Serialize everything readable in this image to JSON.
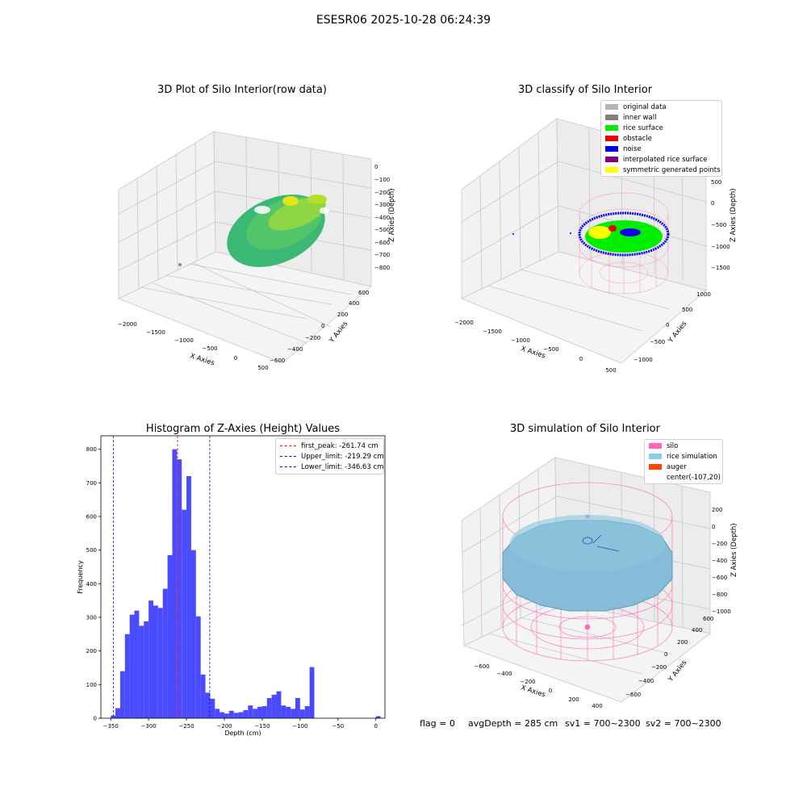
{
  "suptitle": "ESESR06 2025-10-28 06:24:39",
  "plots": {
    "raw": {
      "title": "3D Plot of Silo Interior(row data)",
      "xlabel": "X Axies",
      "ylabel": "Y Axies",
      "zlabel": "Z Axies (Depth)",
      "xticks": [
        "−2000",
        "−1500",
        "−1000",
        "−500",
        "0",
        "500"
      ],
      "yticks": [
        "−600",
        "−400",
        "−200",
        "0",
        "200",
        "400",
        "600"
      ],
      "zticks": [
        "0",
        "−100",
        "−200",
        "−300",
        "−400",
        "−500",
        "−600",
        "−700",
        "−800"
      ]
    },
    "classify": {
      "title": "3D classify of Silo Interior",
      "xlabel": "X Axies",
      "ylabel": "Y Axies",
      "zlabel": "Z Axies (Depth)",
      "xticks": [
        "−2000",
        "−1500",
        "−1000",
        "−500",
        "0",
        "500"
      ],
      "yticks": [
        "−1000",
        "−500",
        "0",
        "500",
        "1000"
      ],
      "zticks": [
        "500",
        "0",
        "−500",
        "−1000",
        "−1500"
      ],
      "legend": [
        {
          "label": "original data",
          "color": "#b3b3b3"
        },
        {
          "label": "inner wall",
          "color": "#808080"
        },
        {
          "label": "rice surface",
          "color": "#00ee00"
        },
        {
          "label": "obstacle",
          "color": "#ee0000"
        },
        {
          "label": "noise",
          "color": "#0000ee"
        },
        {
          "label": "interpolated rice surface",
          "color": "#800080"
        },
        {
          "label": "symmetric generated points",
          "color": "#ffff00"
        }
      ]
    },
    "simulation": {
      "title": "3D simulation of Silo Interior",
      "xlabel": "X Axies",
      "ylabel": "Y Axies",
      "zlabel": "Z Axies (Depth)",
      "xticks": [
        "−600",
        "−400",
        "−200",
        "0",
        "200",
        "400"
      ],
      "yticks": [
        "−600",
        "−400",
        "−200",
        "0",
        "200",
        "400",
        "600"
      ],
      "zticks": [
        "200",
        "0",
        "−200",
        "−400",
        "−600",
        "−800",
        "−1000"
      ],
      "legend": [
        {
          "label": "silo",
          "color": "#ff69b4"
        },
        {
          "label": "rice simulation",
          "color": "#87ceeb"
        },
        {
          "label": "auger",
          "color": "#ff4500"
        },
        {
          "label": "center(-107,20)",
          "color": ""
        }
      ]
    }
  },
  "chart_data": {
    "type": "bar",
    "title": "Histogram of Z-Axies (Height) Values",
    "xlabel": "Depth (cm)",
    "ylabel": "Frequency",
    "xlim": [
      -363,
      12
    ],
    "ylim": [
      0,
      840
    ],
    "xticks": [
      -350,
      -300,
      -250,
      -200,
      -150,
      -100,
      -50,
      0
    ],
    "yticks": [
      0,
      100,
      200,
      300,
      400,
      500,
      600,
      700,
      800
    ],
    "bar_color": "#4a4aff",
    "bin_width": 6.25,
    "bins": [
      {
        "x": -350.0,
        "y": 8
      },
      {
        "x": -343.75,
        "y": 30
      },
      {
        "x": -337.5,
        "y": 140
      },
      {
        "x": -331.25,
        "y": 250
      },
      {
        "x": -325.0,
        "y": 308
      },
      {
        "x": -318.75,
        "y": 320
      },
      {
        "x": -312.5,
        "y": 275
      },
      {
        "x": -306.25,
        "y": 288
      },
      {
        "x": -300.0,
        "y": 350
      },
      {
        "x": -293.75,
        "y": 335
      },
      {
        "x": -287.5,
        "y": 328
      },
      {
        "x": -281.25,
        "y": 385
      },
      {
        "x": -275.0,
        "y": 485
      },
      {
        "x": -268.75,
        "y": 800
      },
      {
        "x": -262.5,
        "y": 770
      },
      {
        "x": -256.25,
        "y": 620
      },
      {
        "x": -250.0,
        "y": 720
      },
      {
        "x": -243.75,
        "y": 500
      },
      {
        "x": -237.5,
        "y": 303
      },
      {
        "x": -231.25,
        "y": 130
      },
      {
        "x": -225.0,
        "y": 76
      },
      {
        "x": -218.75,
        "y": 58
      },
      {
        "x": -212.5,
        "y": 28
      },
      {
        "x": -206.25,
        "y": 18
      },
      {
        "x": -200.0,
        "y": 14
      },
      {
        "x": -193.75,
        "y": 22
      },
      {
        "x": -187.5,
        "y": 16
      },
      {
        "x": -181.25,
        "y": 18
      },
      {
        "x": -175.0,
        "y": 24
      },
      {
        "x": -168.75,
        "y": 38
      },
      {
        "x": -162.5,
        "y": 28
      },
      {
        "x": -156.25,
        "y": 34
      },
      {
        "x": -150.0,
        "y": 36
      },
      {
        "x": -143.75,
        "y": 60
      },
      {
        "x": -137.5,
        "y": 70
      },
      {
        "x": -131.25,
        "y": 80
      },
      {
        "x": -125.0,
        "y": 38
      },
      {
        "x": -118.75,
        "y": 34
      },
      {
        "x": -112.5,
        "y": 28
      },
      {
        "x": -106.25,
        "y": 60
      },
      {
        "x": -100.0,
        "y": 26
      },
      {
        "x": -93.75,
        "y": 36
      },
      {
        "x": -87.5,
        "y": 152
      },
      {
        "x": 0.0,
        "y": 6
      }
    ],
    "vlines": [
      {
        "label": "first_peak: -261.74 cm",
        "x": -261.74,
        "color": "#ff0000"
      },
      {
        "label": "Upper_limit: -219.29 cm",
        "x": -219.29,
        "color": "#0000ff"
      },
      {
        "label": "Lower_limit: -346.63 cm",
        "x": -346.63,
        "color": "#0000ff"
      }
    ]
  },
  "status": {
    "flag": "flag = 0",
    "avg_depth": "avgDepth = 285 cm",
    "sv1": "sv1 = 700~2300",
    "sv2": "sv2 = 700~2300"
  }
}
